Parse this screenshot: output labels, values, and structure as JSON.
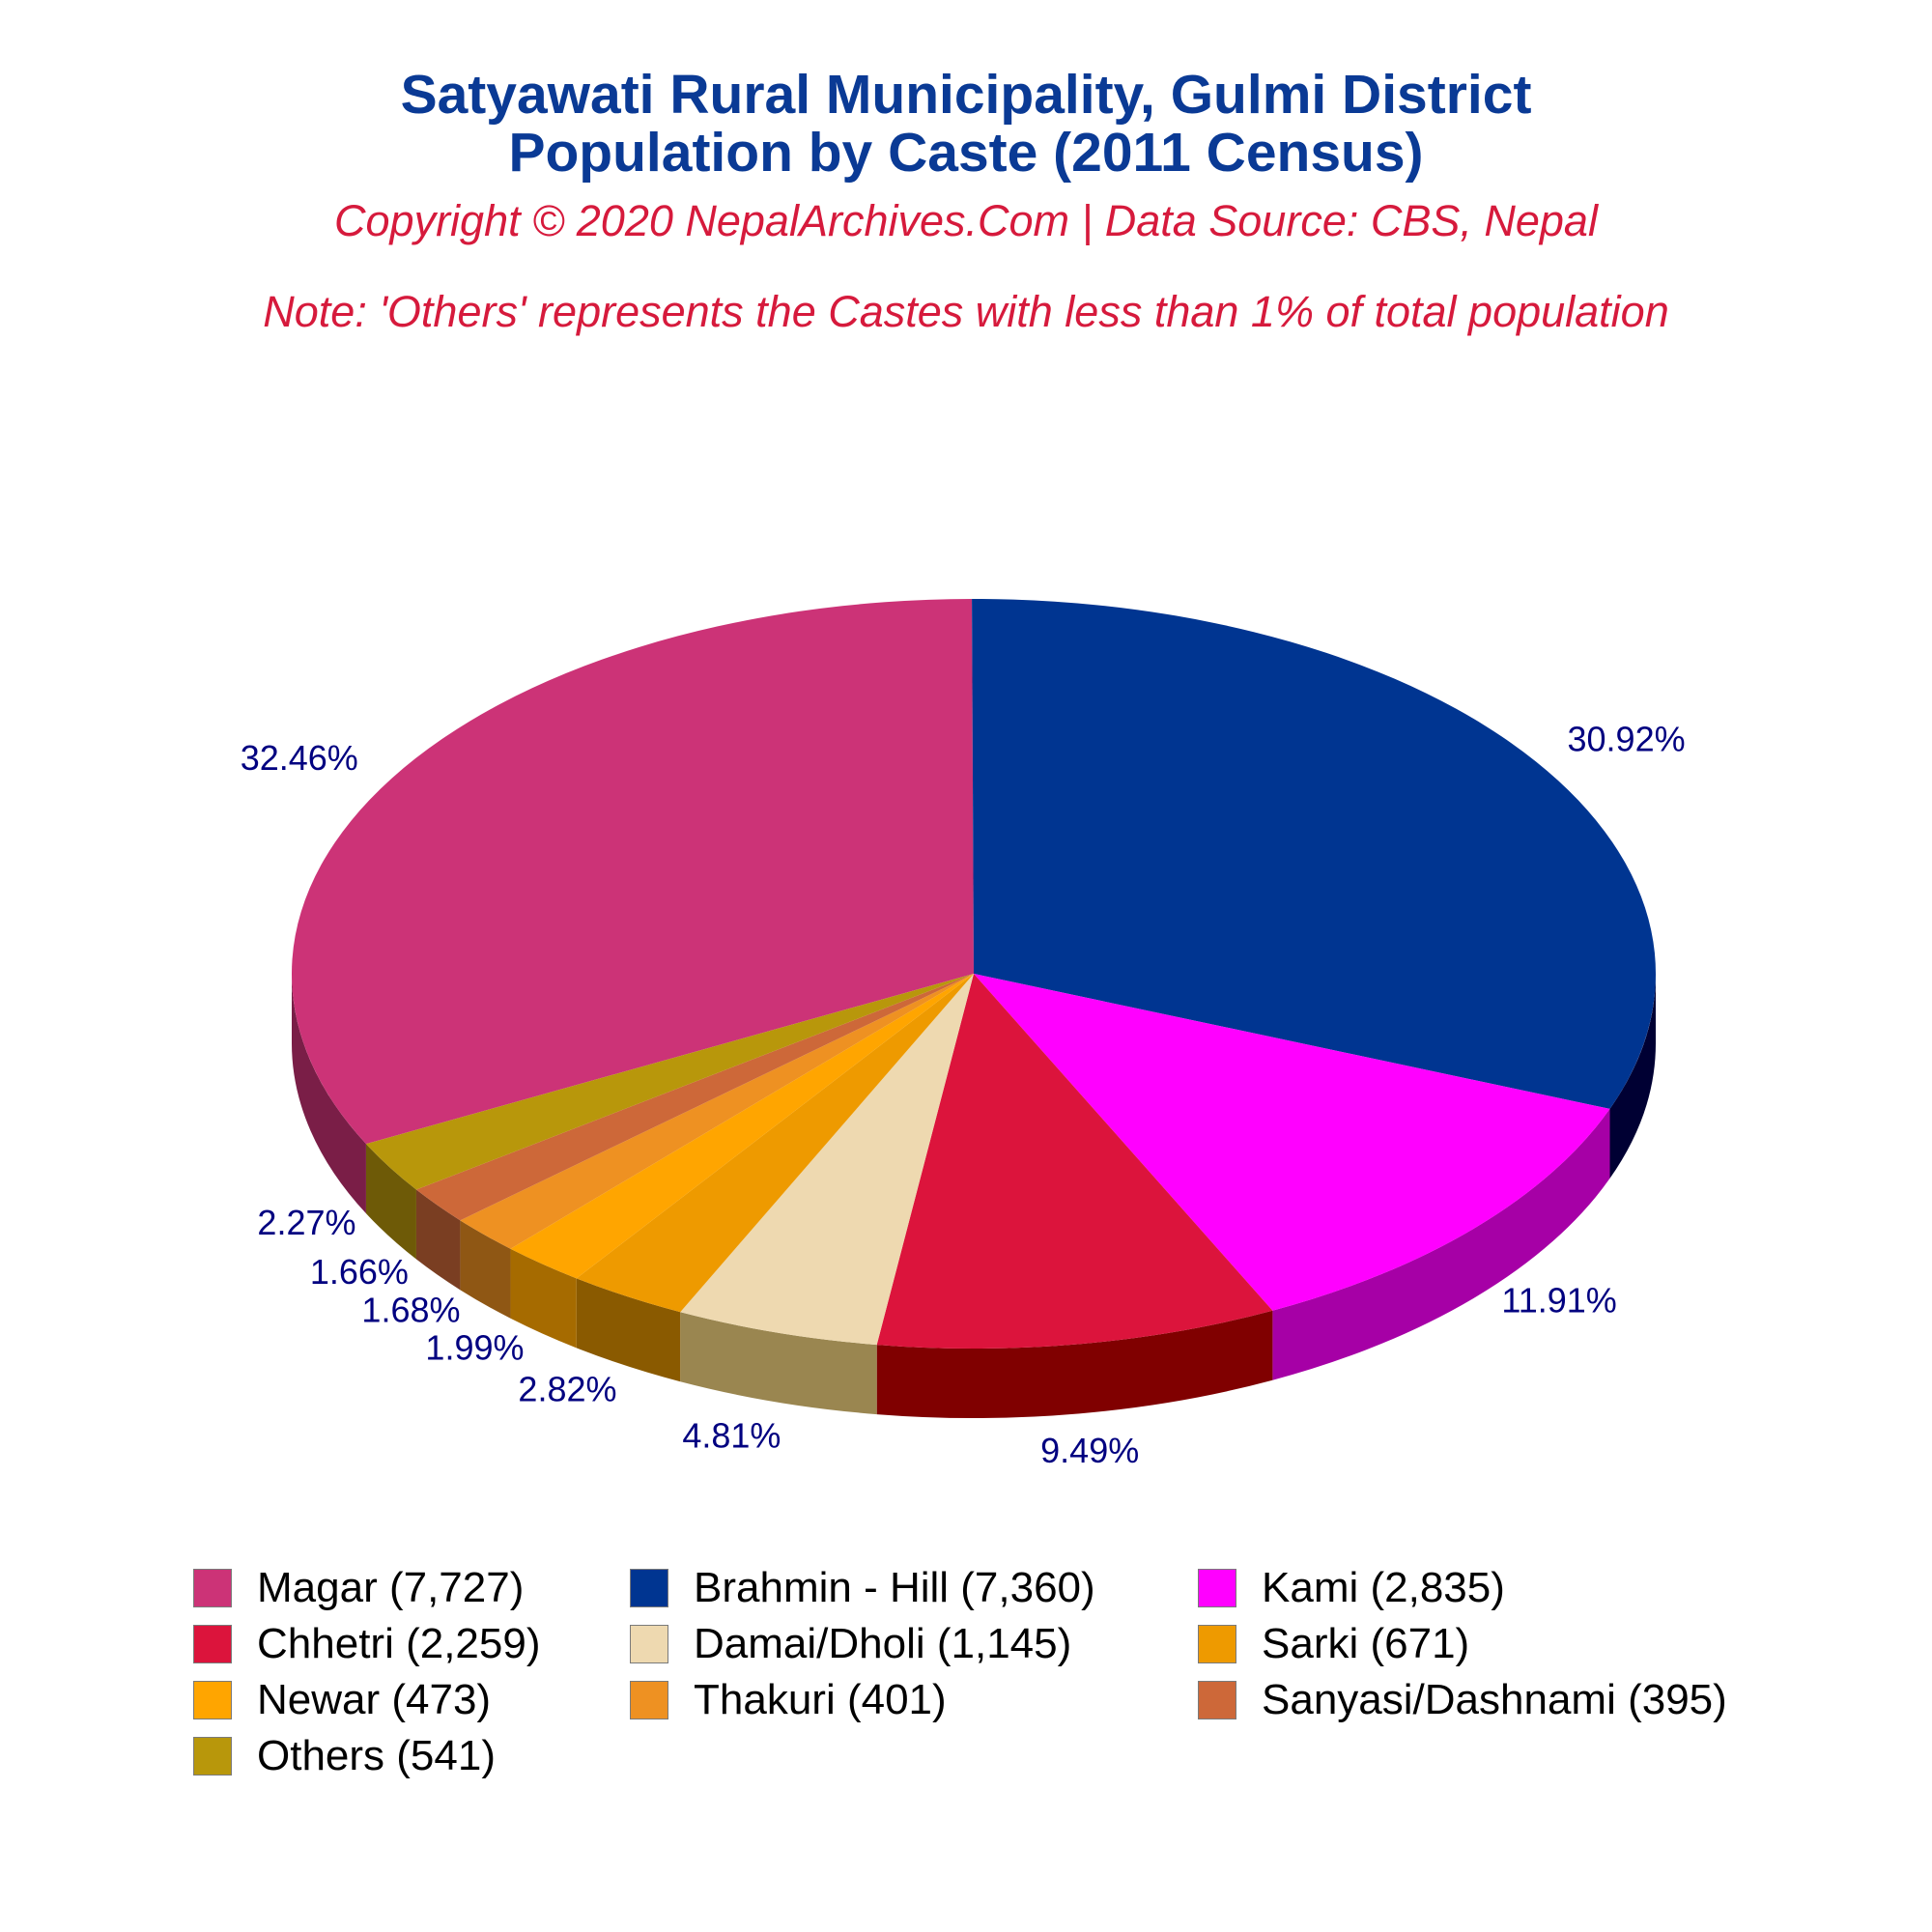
{
  "header": {
    "title_line1": "Satyawati Rural Municipality, Gulmi District",
    "title_line2": "Population by Caste (2011 Census)",
    "copyright": "Copyright © 2020 NepalArchives.Com | Data Source: CBS, Nepal",
    "note": "Note: 'Others' represents the Castes with less than 1% of total population"
  },
  "chart_data": {
    "type": "pie",
    "style": "3d",
    "categories": [
      "Magar",
      "Brahmin - Hill",
      "Kami",
      "Chhetri",
      "Damai/Dholi",
      "Sarki",
      "Newar",
      "Thakuri",
      "Sanyasi/Dashnami",
      "Others"
    ],
    "values": [
      7727,
      7360,
      2835,
      2259,
      1145,
      671,
      473,
      401,
      395,
      541
    ],
    "percent_labels": [
      "32.46%",
      "30.92%",
      "11.91%",
      "9.49%",
      "4.81%",
      "2.82%",
      "1.99%",
      "1.68%",
      "1.66%",
      "2.27%"
    ],
    "colors": [
      "#cc3377",
      "#003591",
      "#ff00ff",
      "#dc143c",
      "#eed9b0",
      "#ee9a00",
      "#ffa500",
      "#ee9122",
      "#cd6839",
      "#b8970b"
    ],
    "side_colors": [
      "#7a1e47",
      "#000033",
      "#a600a6",
      "#800000",
      "#9a8650",
      "#8a5a00",
      "#a66b00",
      "#8f5714",
      "#7a3e22",
      "#6e5a07"
    ],
    "legend_labels": [
      "Magar (7,727)",
      "Brahmin - Hill (7,360)",
      "Kami (2,835)",
      "Chhetri (2,259)",
      "Damai/Dholi (1,145)",
      "Sarki (671)",
      "Newar (473)",
      "Thakuri (401)",
      "Sanyasi/Dashnami (395)",
      "Others (541)"
    ],
    "legend_placement": "bottom"
  }
}
